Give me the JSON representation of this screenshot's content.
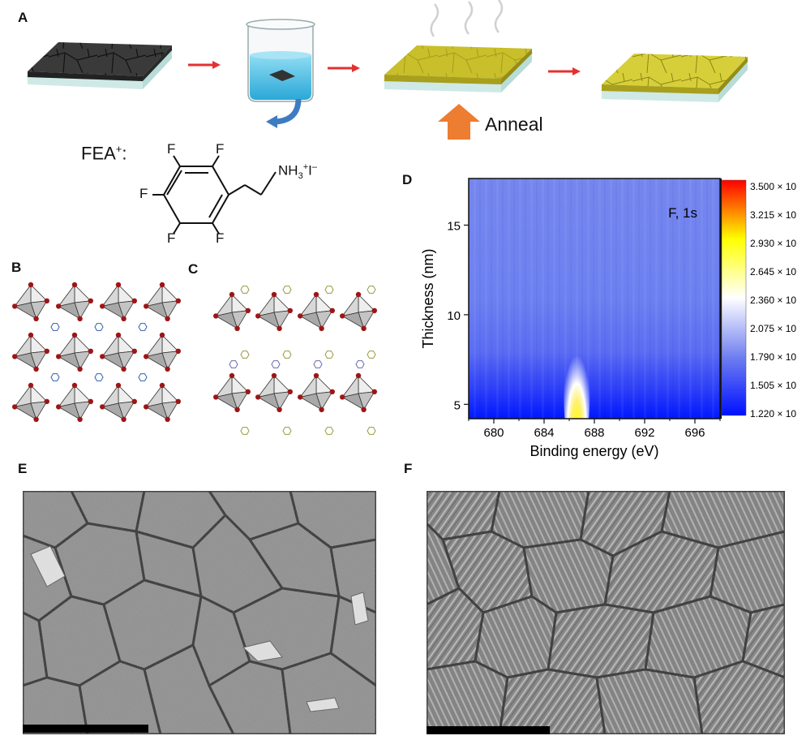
{
  "panels": {
    "A": {
      "label": "A",
      "anneal_label": "Anneal",
      "cation_label": "FEA",
      "cation_charge": "+",
      "cation_colon": ":",
      "molecule": {
        "f_atoms": [
          "F",
          "F",
          "F",
          "F",
          "F"
        ],
        "amine": "NH",
        "sub3": "3",
        "sup_plus": "+",
        "iodide": "I",
        "sup_minus": "–"
      },
      "colors": {
        "perovskite_dark": "#3a3a3a",
        "perovskite_yellow": "#c8bf2a",
        "arrow_red": "#e53030",
        "anneal_arrow": "#ed7d31",
        "solution": "#5fc6e6",
        "rotate_arrow": "#3e7cc2"
      }
    },
    "B": {
      "label": "B"
    },
    "C": {
      "label": "C"
    },
    "D": {
      "label": "D"
    },
    "E": {
      "label": "E"
    },
    "F": {
      "label": "F"
    }
  },
  "chart_data": {
    "type": "heatmap",
    "annotation": "F, 1s",
    "xlabel": "Binding energy (eV)",
    "ylabel": "Thickness (nm)",
    "xlim": [
      678,
      698
    ],
    "ylim": [
      4.2,
      17.6
    ],
    "x_ticks": [
      "680",
      "684",
      "688",
      "692",
      "696"
    ],
    "x_tick_values": [
      680,
      684,
      688,
      692,
      696
    ],
    "y_ticks": [
      "5",
      "10",
      "15"
    ],
    "y_tick_values": [
      5,
      10,
      15
    ],
    "colorbar_labels": [
      "3.500 × 10",
      "3.215 × 10",
      "2.930 × 10",
      "2.645 × 10",
      "2.360 × 10",
      "2.075 × 10",
      "1.790 × 10",
      "1.505 × 10",
      "1.220 × 10"
    ],
    "peak": {
      "binding_energy": 686.6,
      "thickness_max": 8.5
    },
    "colormap": [
      "#0010ff",
      "#7080f0",
      "#ffffff",
      "#ffff00",
      "#ff0000"
    ]
  }
}
